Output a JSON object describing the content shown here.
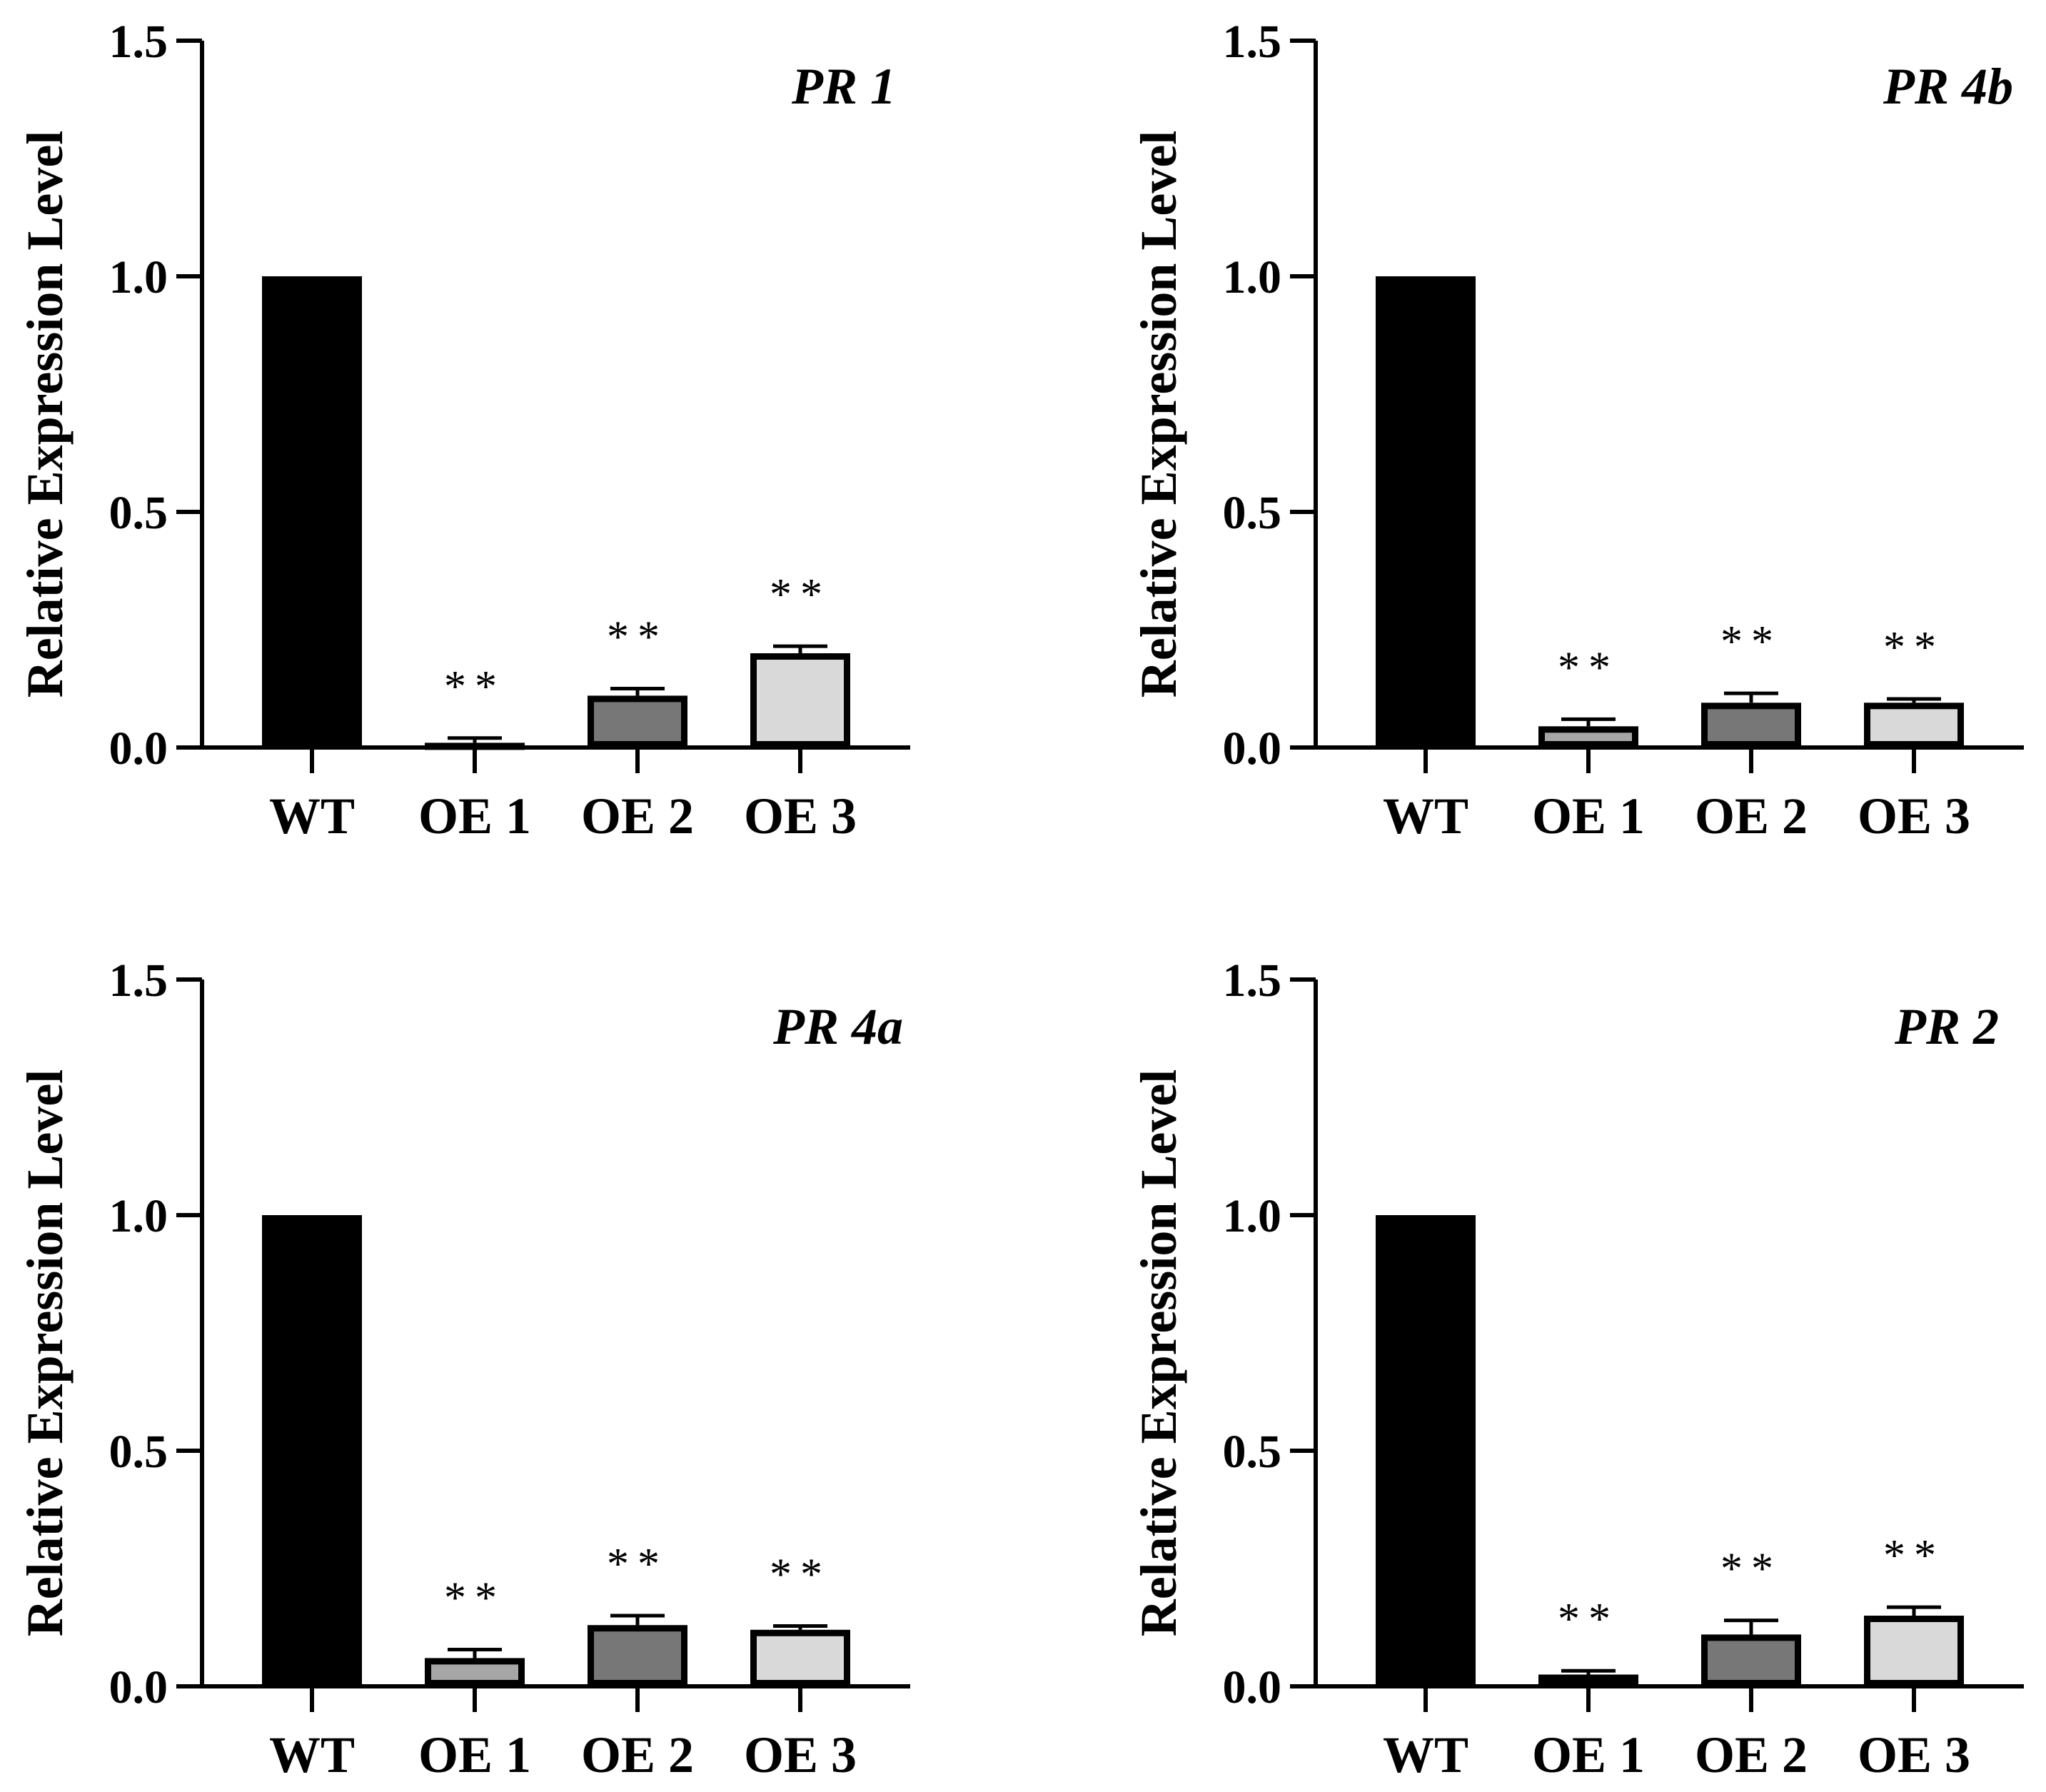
{
  "chart_data": [
    {
      "type": "bar",
      "title": "PR 1",
      "ylabel": "Relative Expression Level",
      "xlabel": "",
      "ylim": [
        0,
        1.5
      ],
      "yticks": [
        "0.0",
        "0.5",
        "1.0",
        "1.5"
      ],
      "categories": [
        "WT",
        "OE 1",
        "OE 2",
        "OE 3"
      ],
      "values": [
        1.0,
        0.01,
        0.11,
        0.2
      ],
      "errors": [
        0,
        0.01,
        0.015,
        0.015
      ],
      "significance": [
        "",
        "**",
        "**",
        "**"
      ],
      "colors": [
        "#000000",
        "#a6a6a6",
        "#777777",
        "#d9d9d9"
      ]
    },
    {
      "type": "bar",
      "title": "PR 4b",
      "ylabel": "Relative Expression Level",
      "xlabel": "",
      "ylim": [
        0,
        1.5
      ],
      "yticks": [
        "0.0",
        "0.5",
        "1.0",
        "1.5"
      ],
      "categories": [
        "WT",
        "OE 1",
        "OE 2",
        "OE 3"
      ],
      "values": [
        1.0,
        0.045,
        0.095,
        0.095
      ],
      "errors": [
        0,
        0.015,
        0.02,
        0.008
      ],
      "significance": [
        "",
        "**",
        "**",
        "**"
      ],
      "colors": [
        "#000000",
        "#a6a6a6",
        "#777777",
        "#d9d9d9"
      ]
    },
    {
      "type": "bar",
      "title": "PR 4a",
      "ylabel": "Relative Expression Level",
      "xlabel": "",
      "ylim": [
        0,
        1.5
      ],
      "yticks": [
        "0.0",
        "0.5",
        "1.0",
        "1.5"
      ],
      "categories": [
        "WT",
        "OE 1",
        "OE 2",
        "OE 3"
      ],
      "values": [
        1.0,
        0.06,
        0.13,
        0.12
      ],
      "errors": [
        0,
        0.018,
        0.02,
        0.008
      ],
      "significance": [
        "",
        "**",
        "**",
        "**"
      ],
      "colors": [
        "#000000",
        "#a6a6a6",
        "#777777",
        "#d9d9d9"
      ]
    },
    {
      "type": "bar",
      "title": "PR 2",
      "ylabel": "Relative Expression Level",
      "xlabel": "",
      "ylim": [
        0,
        1.5
      ],
      "yticks": [
        "0.0",
        "0.5",
        "1.0",
        "1.5"
      ],
      "categories": [
        "WT",
        "OE 1",
        "OE 2",
        "OE 3"
      ],
      "values": [
        1.0,
        0.025,
        0.11,
        0.15
      ],
      "errors": [
        0,
        0.008,
        0.03,
        0.018
      ],
      "significance": [
        "",
        "**",
        "**",
        "**"
      ],
      "colors": [
        "#000000",
        "#a6a6a6",
        "#777777",
        "#d9d9d9"
      ]
    }
  ]
}
